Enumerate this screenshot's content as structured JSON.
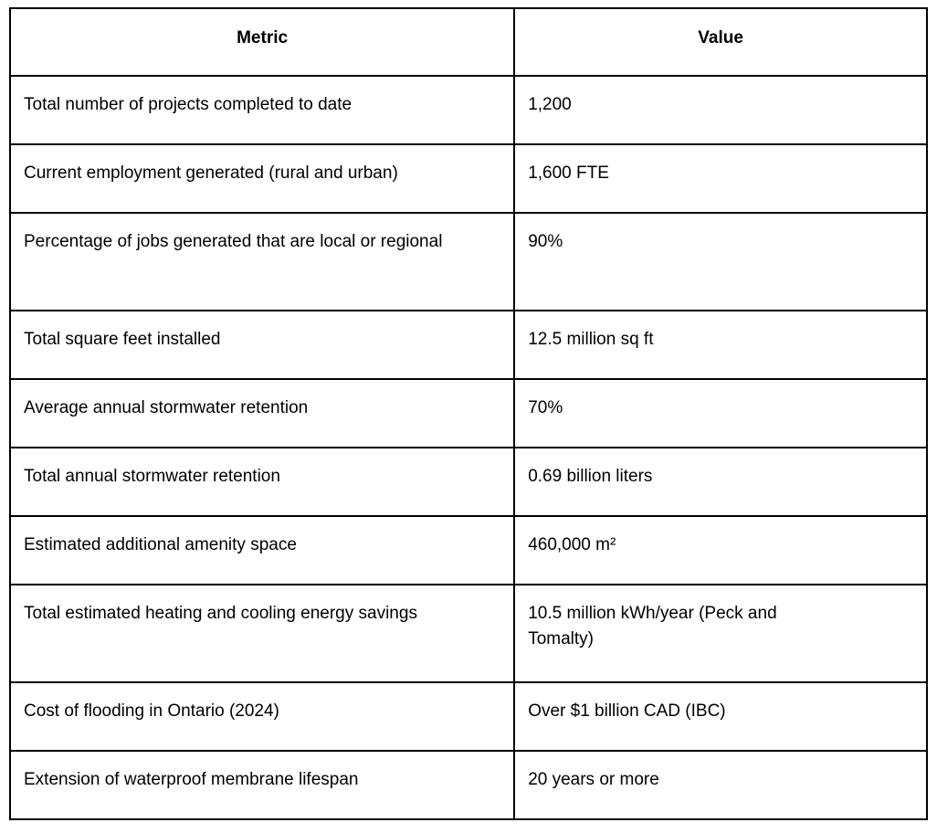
{
  "table": {
    "headers": {
      "metric": "Metric",
      "value": "Value"
    },
    "rows": [
      {
        "metric": "Total number of projects completed to date",
        "value": "1,200"
      },
      {
        "metric": "Current employment generated (rural and urban)",
        "value": "1,600 FTE"
      },
      {
        "metric": "Percentage of jobs generated that are local or regional",
        "value": "90%"
      },
      {
        "metric": "Total square feet installed",
        "value": "12.5 million sq ft"
      },
      {
        "metric": "Average annual stormwater retention",
        "value": "70%"
      },
      {
        "metric": "Total annual stormwater retention",
        "value": "0.69 billion liters"
      },
      {
        "metric": "Estimated additional amenity space",
        "value": "460,000 m²"
      },
      {
        "metric": "Total estimated heating and cooling energy savings",
        "value": "10.5 million kWh/year (Peck and Tomalty)"
      },
      {
        "metric": "Cost of flooding in Ontario (2024)",
        "value": "Over $1 billion CAD (IBC)"
      },
      {
        "metric": "Extension of waterproof membrane lifespan",
        "value": "20 years or more"
      }
    ],
    "colors": {
      "border": "#000000",
      "text": "#000000",
      "background": "#ffffff"
    }
  }
}
